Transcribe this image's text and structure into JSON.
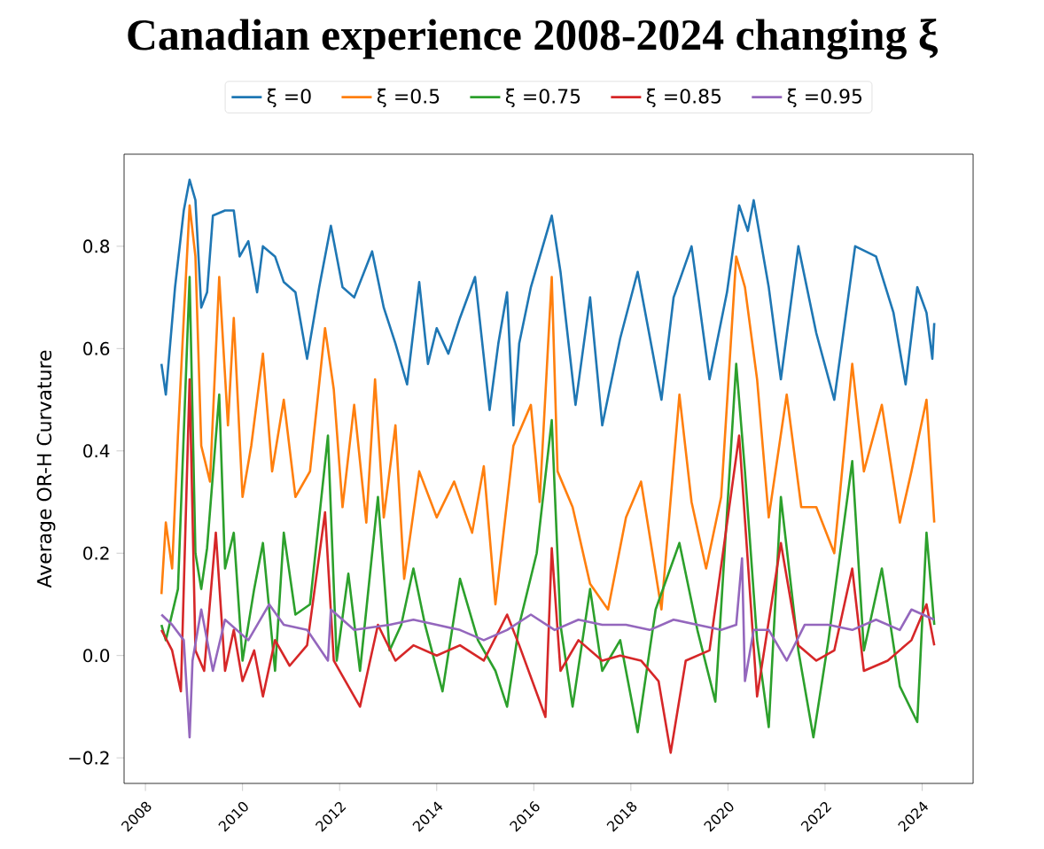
{
  "chart_data": {
    "type": "line",
    "title": "Canadian experience 2008-2024 changing ξ",
    "ylabel": "Average OR-H Curvature",
    "legend": "top",
    "grid": false,
    "xlim": [
      2007.56,
      2025.05
    ],
    "ylim": [
      -0.25,
      0.98
    ],
    "xticks": [
      2008,
      2010,
      2012,
      2014,
      2016,
      2018,
      2020,
      2022,
      2024
    ],
    "yticks": [
      {
        "value": -0.2,
        "label": "−0.2"
      },
      {
        "value": 0,
        "label": "0.0"
      },
      {
        "value": 0.2,
        "label": "0.2"
      },
      {
        "value": 0.4,
        "label": "0.4"
      },
      {
        "value": 0.6,
        "label": "0.6"
      },
      {
        "value": 0.8,
        "label": "0.8"
      }
    ],
    "series": [
      {
        "name": "ξ =0",
        "color": "#1f77b4",
        "x": [
          2008.33,
          2008.42,
          2008.61,
          2008.79,
          2008.91,
          2009.03,
          2009.15,
          2009.27,
          2009.39,
          2009.64,
          2009.82,
          2009.94,
          2010.12,
          2010.3,
          2010.42,
          2010.67,
          2010.85,
          2011.09,
          2011.33,
          2011.58,
          2011.82,
          2012.06,
          2012.3,
          2012.67,
          2012.91,
          2013.15,
          2013.39,
          2013.64,
          2013.82,
          2014.0,
          2014.24,
          2014.48,
          2014.79,
          2015.09,
          2015.27,
          2015.45,
          2015.58,
          2015.7,
          2015.94,
          2016.37,
          2016.55,
          2016.86,
          2017.16,
          2017.41,
          2017.78,
          2018.14,
          2018.63,
          2018.88,
          2019.25,
          2019.62,
          2019.98,
          2020.23,
          2020.41,
          2020.53,
          2020.84,
          2021.09,
          2021.45,
          2021.82,
          2022.19,
          2022.62,
          2023.05,
          2023.41,
          2023.66,
          2023.9,
          2024.09,
          2024.21,
          2024.25
        ],
        "values": [
          0.57,
          0.51,
          0.72,
          0.87,
          0.93,
          0.89,
          0.68,
          0.71,
          0.86,
          0.87,
          0.87,
          0.78,
          0.81,
          0.71,
          0.8,
          0.78,
          0.73,
          0.71,
          0.58,
          0.72,
          0.84,
          0.72,
          0.7,
          0.79,
          0.68,
          0.61,
          0.53,
          0.73,
          0.57,
          0.64,
          0.59,
          0.66,
          0.74,
          0.48,
          0.61,
          0.71,
          0.45,
          0.61,
          0.72,
          0.86,
          0.75,
          0.49,
          0.7,
          0.45,
          0.62,
          0.75,
          0.5,
          0.7,
          0.8,
          0.54,
          0.71,
          0.88,
          0.83,
          0.89,
          0.72,
          0.54,
          0.8,
          0.63,
          0.5,
          0.8,
          0.78,
          0.67,
          0.53,
          0.72,
          0.67,
          0.58,
          0.65
        ]
      },
      {
        "name": "ξ =0.5",
        "color": "#ff7f0e",
        "x": [
          2008.33,
          2008.42,
          2008.55,
          2008.67,
          2008.79,
          2008.91,
          2009.03,
          2009.15,
          2009.33,
          2009.52,
          2009.7,
          2009.82,
          2010.0,
          2010.18,
          2010.42,
          2010.61,
          2010.85,
          2011.09,
          2011.39,
          2011.7,
          2011.88,
          2012.06,
          2012.3,
          2012.55,
          2012.73,
          2012.91,
          2013.15,
          2013.33,
          2013.64,
          2014.0,
          2014.36,
          2014.73,
          2014.97,
          2015.21,
          2015.58,
          2015.94,
          2016.12,
          2016.37,
          2016.49,
          2016.8,
          2017.16,
          2017.53,
          2017.9,
          2018.21,
          2018.63,
          2019.0,
          2019.25,
          2019.55,
          2019.86,
          2020.17,
          2020.35,
          2020.6,
          2020.84,
          2021.21,
          2021.51,
          2021.82,
          2022.19,
          2022.56,
          2022.8,
          2023.17,
          2023.54,
          2023.78,
          2024.09,
          2024.25
        ],
        "values": [
          0.12,
          0.26,
          0.17,
          0.43,
          0.66,
          0.88,
          0.78,
          0.41,
          0.34,
          0.74,
          0.45,
          0.66,
          0.31,
          0.41,
          0.59,
          0.36,
          0.5,
          0.31,
          0.36,
          0.64,
          0.52,
          0.29,
          0.49,
          0.26,
          0.54,
          0.27,
          0.45,
          0.15,
          0.36,
          0.27,
          0.34,
          0.24,
          0.37,
          0.1,
          0.41,
          0.49,
          0.3,
          0.74,
          0.36,
          0.29,
          0.14,
          0.09,
          0.27,
          0.34,
          0.09,
          0.51,
          0.3,
          0.17,
          0.31,
          0.78,
          0.72,
          0.54,
          0.27,
          0.51,
          0.29,
          0.29,
          0.2,
          0.57,
          0.36,
          0.49,
          0.26,
          0.36,
          0.5,
          0.26
        ]
      },
      {
        "name": "ξ =0.75",
        "color": "#2ca02c",
        "x": [
          2008.33,
          2008.42,
          2008.67,
          2008.91,
          2009.03,
          2009.15,
          2009.27,
          2009.52,
          2009.64,
          2009.82,
          2010.0,
          2010.24,
          2010.42,
          2010.67,
          2010.85,
          2011.09,
          2011.39,
          2011.76,
          2011.94,
          2012.18,
          2012.42,
          2012.79,
          2013.03,
          2013.27,
          2013.52,
          2013.76,
          2014.12,
          2014.48,
          2014.85,
          2015.21,
          2015.45,
          2015.7,
          2016.06,
          2016.37,
          2016.55,
          2016.8,
          2017.16,
          2017.41,
          2017.78,
          2018.14,
          2018.51,
          2019.0,
          2019.37,
          2019.74,
          2020.17,
          2020.35,
          2020.6,
          2020.84,
          2021.09,
          2021.45,
          2021.76,
          2022.07,
          2022.56,
          2022.8,
          2023.17,
          2023.54,
          2023.9,
          2024.09,
          2024.25
        ],
        "values": [
          0.06,
          0.03,
          0.13,
          0.74,
          0.2,
          0.13,
          0.21,
          0.51,
          0.17,
          0.24,
          -0.01,
          0.13,
          0.22,
          -0.03,
          0.24,
          0.08,
          0.1,
          0.43,
          -0.01,
          0.16,
          -0.03,
          0.31,
          0.01,
          0.06,
          0.17,
          0.06,
          -0.07,
          0.15,
          0.03,
          -0.03,
          -0.1,
          0.06,
          0.2,
          0.46,
          0.06,
          -0.1,
          0.13,
          -0.03,
          0.03,
          -0.15,
          0.09,
          0.22,
          0.05,
          -0.09,
          0.57,
          0.36,
          0.03,
          -0.14,
          0.31,
          0.01,
          -0.16,
          0.03,
          0.38,
          0.01,
          0.17,
          -0.06,
          -0.13,
          0.24,
          0.06
        ]
      },
      {
        "name": "ξ =0.85",
        "color": "#d62728",
        "x": [
          2008.33,
          2008.55,
          2008.73,
          2008.91,
          2009.03,
          2009.21,
          2009.45,
          2009.64,
          2009.82,
          2010.0,
          2010.24,
          2010.42,
          2010.67,
          2010.97,
          2011.33,
          2011.7,
          2011.88,
          2012.42,
          2012.79,
          2013.15,
          2013.52,
          2014.0,
          2014.48,
          2014.97,
          2015.45,
          2015.7,
          2016.24,
          2016.37,
          2016.55,
          2016.92,
          2017.41,
          2017.78,
          2018.21,
          2018.57,
          2018.82,
          2019.13,
          2019.62,
          2020.23,
          2020.47,
          2020.6,
          2021.09,
          2021.45,
          2021.82,
          2022.19,
          2022.56,
          2022.8,
          2023.29,
          2023.78,
          2024.09,
          2024.25
        ],
        "values": [
          0.05,
          0.01,
          -0.07,
          0.54,
          0.01,
          -0.03,
          0.24,
          -0.03,
          0.05,
          -0.05,
          0.01,
          -0.08,
          0.03,
          -0.02,
          0.02,
          0.28,
          -0.01,
          -0.1,
          0.06,
          -0.01,
          0.02,
          0.0,
          0.02,
          -0.01,
          0.08,
          0.02,
          -0.12,
          0.21,
          -0.03,
          0.03,
          -0.01,
          0.0,
          -0.01,
          -0.05,
          -0.19,
          -0.01,
          0.01,
          0.43,
          0.1,
          -0.08,
          0.22,
          0.02,
          -0.01,
          0.01,
          0.17,
          -0.03,
          -0.01,
          0.03,
          0.1,
          0.02
        ]
      },
      {
        "name": "ξ =0.95",
        "color": "#9467bd",
        "x": [
          2008.33,
          2008.55,
          2008.79,
          2008.91,
          2008.97,
          2009.15,
          2009.39,
          2009.64,
          2010.12,
          2010.55,
          2010.85,
          2011.33,
          2011.76,
          2011.82,
          2012.3,
          2013.03,
          2013.52,
          2014.0,
          2014.48,
          2014.97,
          2015.45,
          2015.94,
          2016.43,
          2016.92,
          2017.41,
          2017.9,
          2018.39,
          2018.88,
          2019.37,
          2019.86,
          2020.17,
          2020.29,
          2020.35,
          2020.53,
          2020.84,
          2021.21,
          2021.58,
          2022.07,
          2022.56,
          2023.05,
          2023.54,
          2023.78,
          2024.25
        ],
        "values": [
          0.08,
          0.06,
          0.03,
          -0.16,
          -0.01,
          0.09,
          -0.03,
          0.07,
          0.03,
          0.1,
          0.06,
          0.05,
          -0.01,
          0.09,
          0.05,
          0.06,
          0.07,
          0.06,
          0.05,
          0.03,
          0.05,
          0.08,
          0.05,
          0.07,
          0.06,
          0.06,
          0.05,
          0.07,
          0.06,
          0.05,
          0.06,
          0.19,
          -0.05,
          0.05,
          0.05,
          -0.01,
          0.06,
          0.06,
          0.05,
          0.07,
          0.05,
          0.09,
          0.07
        ]
      }
    ]
  }
}
